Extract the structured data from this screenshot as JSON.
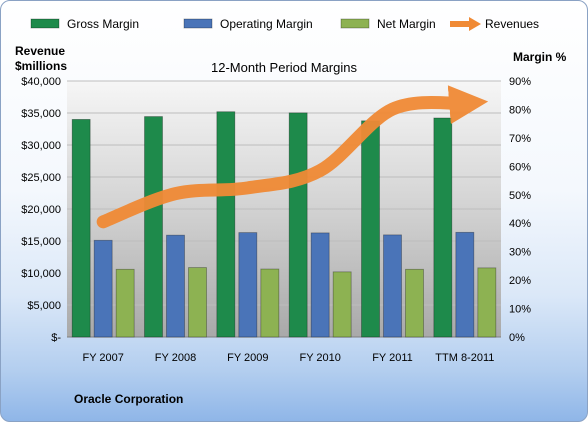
{
  "chart_data": {
    "type": "bar",
    "title": "12-Month Period Margins",
    "footer": "Oracle Corporation",
    "ylabel_left": [
      "Revenue",
      "$millions"
    ],
    "ylabel_right": "Margin %",
    "categories": [
      "FY 2007",
      "FY 2008",
      "FY 2009",
      "FY 2010",
      "FY 2011",
      "TTM 8-2011"
    ],
    "left_axis": {
      "ylim": [
        0,
        40000
      ],
      "ticks": [
        "$-",
        "$5,000",
        "$10,000",
        "$15,000",
        "$20,000",
        "$25,000",
        "$30,000",
        "$35,000",
        "$40,000"
      ]
    },
    "right_axis": {
      "ylim": [
        0,
        90
      ],
      "ticks": [
        "0%",
        "10%",
        "20%",
        "30%",
        "40%",
        "50%",
        "60%",
        "70%",
        "80%",
        "90%"
      ]
    },
    "series": [
      {
        "name": "Gross Margin",
        "type": "bar",
        "axis": "right",
        "color": "#1e8a4b",
        "values": [
          76.5,
          77.5,
          79.2,
          78.8,
          76.0,
          77.0
        ]
      },
      {
        "name": "Operating Margin",
        "type": "bar",
        "axis": "right",
        "color": "#4a74b8",
        "values": [
          34.0,
          35.8,
          36.7,
          36.6,
          35.9,
          36.8
        ]
      },
      {
        "name": "Net Margin",
        "type": "bar",
        "axis": "right",
        "color": "#8db252",
        "values": [
          23.8,
          24.4,
          23.9,
          22.9,
          23.8,
          24.3
        ]
      },
      {
        "name": "Revenues",
        "type": "line",
        "axis": "left",
        "color": "#f08a35",
        "values": [
          18000,
          22400,
          23300,
          26000,
          35600,
          36500
        ]
      }
    ],
    "legend_position": "top",
    "grid": true
  }
}
